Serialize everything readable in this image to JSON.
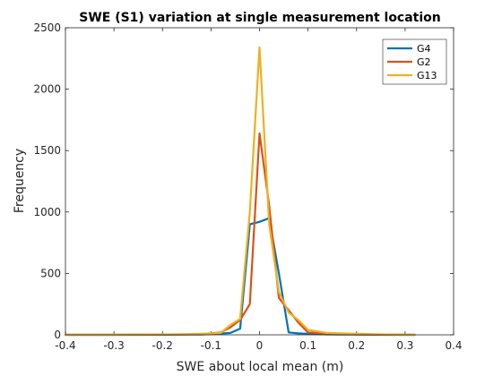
{
  "chart_data": {
    "type": "line",
    "title": "SWE (S1) variation at single measurement location",
    "xlabel": "SWE about local mean (m)",
    "ylabel": "Frequency",
    "xlim": [
      -0.4,
      0.4
    ],
    "ylim": [
      0,
      2500
    ],
    "xticks": [
      "-0.4",
      "-0.3",
      "-0.2",
      "-0.1",
      "0",
      "0.1",
      "0.2",
      "0.3",
      "0.4"
    ],
    "yticks": [
      "0",
      "500",
      "1000",
      "1500",
      "2000",
      "2500"
    ],
    "grid": false,
    "legend_position": "top-right",
    "series": [
      {
        "name": "G4",
        "color": "#0072BD",
        "x": [
          -0.4,
          -0.32,
          -0.24,
          -0.16,
          -0.12,
          -0.08,
          -0.06,
          -0.04,
          -0.02,
          0.0,
          0.02,
          0.04,
          0.06,
          0.08,
          0.1,
          0.14,
          0.2,
          0.26,
          0.32
        ],
        "y": [
          0,
          0,
          0,
          2,
          3,
          10,
          15,
          50,
          900,
          920,
          950,
          500,
          20,
          12,
          8,
          4,
          2,
          0,
          0
        ]
      },
      {
        "name": "G2",
        "color": "#D95319",
        "x": [
          -0.4,
          -0.32,
          -0.24,
          -0.16,
          -0.12,
          -0.08,
          -0.06,
          -0.04,
          -0.02,
          0.0,
          0.02,
          0.04,
          0.06,
          0.08,
          0.1,
          0.14,
          0.2,
          0.26,
          0.32
        ],
        "y": [
          0,
          0,
          1,
          2,
          5,
          20,
          60,
          120,
          250,
          1640,
          1050,
          300,
          200,
          100,
          20,
          10,
          3,
          1,
          0
        ]
      },
      {
        "name": "G13",
        "color": "#EDB120",
        "x": [
          -0.4,
          -0.32,
          -0.24,
          -0.16,
          -0.12,
          -0.08,
          -0.06,
          -0.04,
          -0.02,
          0.0,
          0.02,
          0.04,
          0.06,
          0.08,
          0.1,
          0.14,
          0.2,
          0.26,
          0.32
        ],
        "y": [
          0,
          0,
          2,
          5,
          8,
          15,
          80,
          130,
          1000,
          2340,
          900,
          350,
          180,
          120,
          40,
          15,
          8,
          3,
          0
        ]
      }
    ]
  }
}
